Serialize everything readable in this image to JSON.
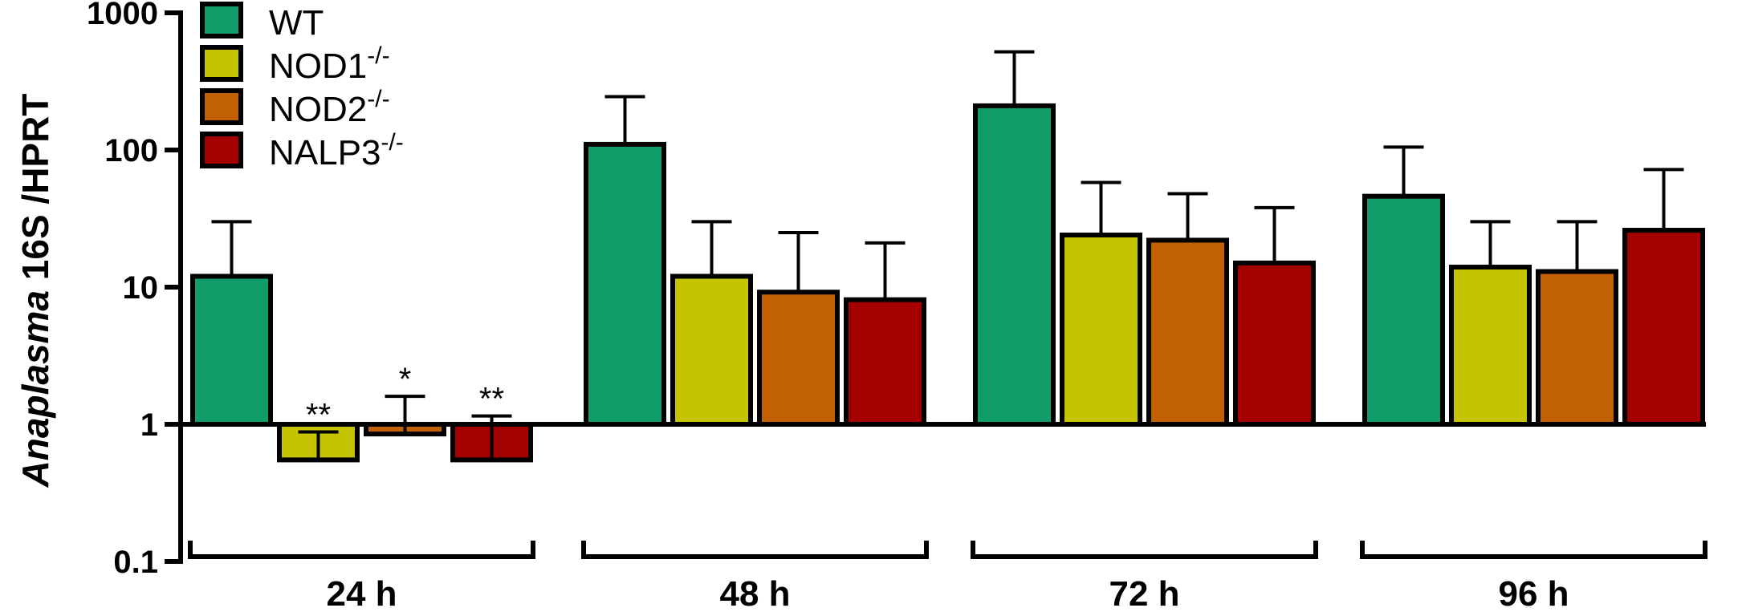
{
  "chart_data": {
    "type": "bar",
    "yscale": "log",
    "ylim": [
      0.1,
      1000
    ],
    "baseline": 1,
    "ylabel": {
      "italic": "Anaplasma",
      "rest": " 16S /HPRT"
    },
    "yticks": [
      {
        "value": 0.1,
        "label": "0.1"
      },
      {
        "value": 1,
        "label": "1"
      },
      {
        "value": 10,
        "label": "10"
      },
      {
        "value": 100,
        "label": "100"
      },
      {
        "value": 1000,
        "label": "1000"
      }
    ],
    "categories": [
      "24 h",
      "48 h",
      "72 h",
      "96 h"
    ],
    "series": [
      {
        "name": "WT",
        "sup": "",
        "color": "#109d69",
        "values": [
          12,
          110,
          210,
          46
        ],
        "errors": [
          30,
          245,
          520,
          105
        ],
        "sig": [
          "",
          "",
          "",
          ""
        ]
      },
      {
        "name": "NOD1",
        "sup": "-/-",
        "color": "#c4c400",
        "values": [
          0.55,
          12,
          24,
          14
        ],
        "errors": [
          0.88,
          30,
          58,
          30
        ],
        "sig": [
          "**",
          "",
          "",
          ""
        ]
      },
      {
        "name": "NOD2",
        "sup": "-/-",
        "color": "#c26104",
        "values": [
          0.85,
          9.2,
          22,
          13
        ],
        "errors": [
          1.6,
          25,
          48,
          30
        ],
        "sig": [
          "*",
          "",
          "",
          ""
        ]
      },
      {
        "name": "NALP3",
        "sup": "-/-",
        "color": "#a50000",
        "values": [
          0.55,
          8.1,
          15,
          26
        ],
        "errors": [
          1.15,
          21,
          38,
          72
        ],
        "sig": [
          "**",
          "",
          "",
          ""
        ]
      }
    ],
    "legend_position": "top-left",
    "grid": false
  }
}
